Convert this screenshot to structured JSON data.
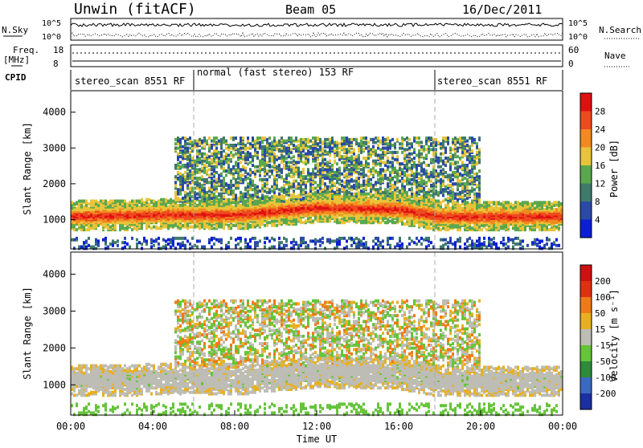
{
  "header": {
    "station": "Unwin (fitACF)",
    "beam": "Beam 05",
    "date": "16/Dec/2011"
  },
  "summary_panels": {
    "nsky_label": "N.Sky",
    "nsearch_label": "N.Search",
    "nsky_ticks": [
      "10^5",
      "10^0"
    ],
    "nsearch_ticks": [
      "10^5",
      "10^0"
    ],
    "freq_label": "Freq.",
    "freq_unit": "[MHz]",
    "freq_ticks": [
      "18",
      "8"
    ],
    "nave_label": "Nave",
    "nave_ticks": [
      "60",
      "0"
    ],
    "cpid_label": "CPID",
    "cpid_segments": [
      {
        "start_hour": 0,
        "end_hour": 6,
        "label": "stereo_scan 8551 RF"
      },
      {
        "start_hour": 6,
        "end_hour": 18,
        "label": "normal (fast stereo) 153 RF"
      },
      {
        "start_hour": 18,
        "end_hour": 24,
        "label": "stereo_scan 8551 RF"
      }
    ]
  },
  "chart_data": [
    {
      "type": "heatmap",
      "name": "power",
      "ylabel": "Slant Range [km]",
      "yticks": [
        1000,
        2000,
        3000,
        4000
      ],
      "ylim": [
        180,
        4600
      ],
      "xlim": [
        0,
        24
      ],
      "colorbar_label": "Power [dB]",
      "colorbar_ticks": [
        4,
        8,
        12,
        16,
        20,
        24,
        28
      ],
      "colorbar_range": [
        0,
        32
      ],
      "colors": [
        "#0a1fd6",
        "#2a4aa6",
        "#3f7a6a",
        "#5aa84e",
        "#e8c43a",
        "#f28a1f",
        "#ee4a1e",
        "#e01010"
      ],
      "vertical_markers_hours": [
        6,
        18
      ],
      "features": [
        {
          "label": "main band centre",
          "range_km_by_hour": [
            [
              0,
              1100
            ],
            [
              4,
              1150
            ],
            [
              8,
              1150
            ],
            [
              12,
              1350
            ],
            [
              16,
              1300
            ],
            [
              18,
              1100
            ],
            [
              24,
              1100
            ]
          ]
        },
        {
          "label": "upper scatter",
          "range_km": [
            1500,
            3300
          ],
          "hours": [
            5,
            20
          ]
        }
      ]
    },
    {
      "type": "heatmap",
      "name": "velocity",
      "ylabel": "Slant Range [km]",
      "yticks": [
        1000,
        2000,
        3000,
        4000
      ],
      "ylim": [
        180,
        4600
      ],
      "xlim": [
        0,
        24
      ],
      "xticks": [
        "00:00",
        "04:00",
        "08:00",
        "12:00",
        "16:00",
        "20:00",
        "00:00"
      ],
      "xlabel": "Time UT",
      "colorbar_label": "Velocity [m s⁻¹]",
      "colorbar_ticks": [
        "200",
        "100",
        "50",
        "15",
        "-15",
        "-50",
        "-100",
        "-200"
      ],
      "colors": [
        "#1a2fa0",
        "#3a6abf",
        "#2f8a3a",
        "#66c43a",
        "#bdbdb5",
        "#e8b020",
        "#f07a18",
        "#e03010",
        "#d01010"
      ],
      "vertical_markers_hours": [
        6,
        18
      ]
    }
  ]
}
